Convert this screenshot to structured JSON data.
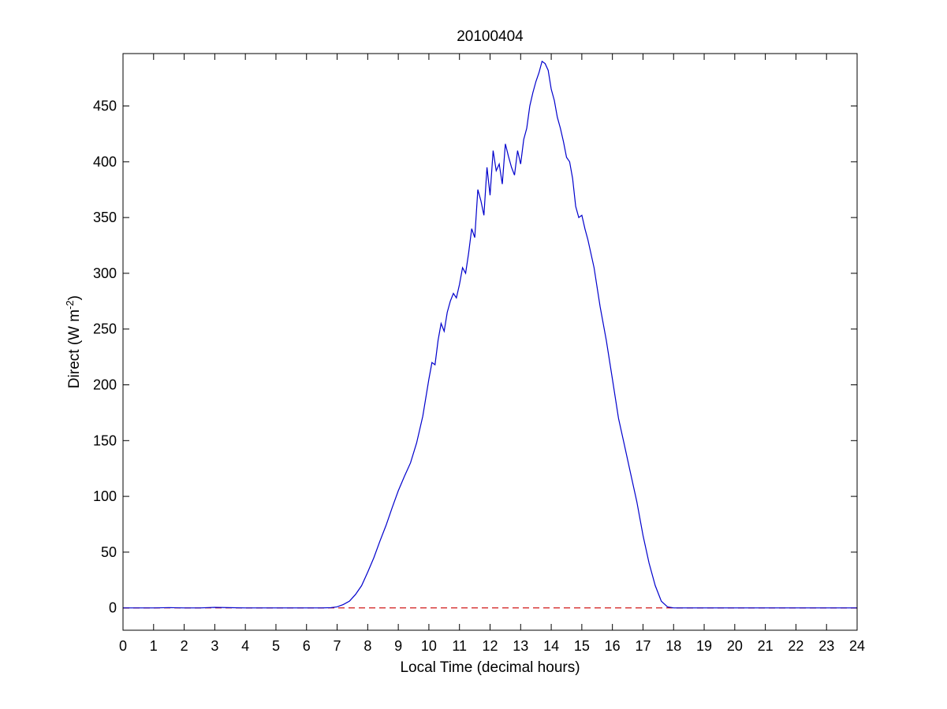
{
  "chart_data": {
    "type": "line",
    "title": "20100404",
    "xlabel": "Local Time (decimal hours)",
    "ylabel_main": "Direct (W m",
    "ylabel_sup": "-2",
    "ylabel_end": ")",
    "xlim": [
      0,
      24
    ],
    "ylim": [
      -20,
      497
    ],
    "xticks": [
      0,
      1,
      2,
      3,
      4,
      5,
      6,
      7,
      8,
      9,
      10,
      11,
      12,
      13,
      14,
      15,
      16,
      17,
      18,
      19,
      20,
      21,
      22,
      23,
      24
    ],
    "yticks": [
      0,
      50,
      100,
      150,
      200,
      250,
      300,
      350,
      400,
      450
    ],
    "grid": false,
    "colors": {
      "series": "#0000cc",
      "baseline": "#cc0000",
      "axes": "#000000"
    },
    "series": [
      {
        "x": [
          0,
          0.5,
          1,
          1.5,
          2,
          2.5,
          3,
          3.5,
          4,
          5,
          6,
          6.5,
          6.8,
          7,
          7.2,
          7.4,
          7.6,
          7.8,
          8,
          8.2,
          8.4,
          8.6,
          8.8,
          9,
          9.2,
          9.4,
          9.6,
          9.8,
          10,
          10.1,
          10.2,
          10.3,
          10.4,
          10.5,
          10.6,
          10.7,
          10.8,
          10.9,
          11,
          11.1,
          11.2,
          11.3,
          11.4,
          11.5,
          11.6,
          11.7,
          11.8,
          11.9,
          12,
          12.1,
          12.2,
          12.3,
          12.4,
          12.5,
          12.6,
          12.7,
          12.8,
          12.9,
          13,
          13.1,
          13.2,
          13.3,
          13.4,
          13.5,
          13.6,
          13.7,
          13.8,
          13.9,
          14,
          14.1,
          14.2,
          14.3,
          14.4,
          14.5,
          14.6,
          14.7,
          14.8,
          14.9,
          15,
          15.1,
          15.2,
          15.4,
          15.6,
          15.8,
          16,
          16.2,
          16.4,
          16.6,
          16.8,
          17,
          17.2,
          17.4,
          17.6,
          17.8,
          18,
          18.2,
          18.5,
          19,
          20,
          21,
          22,
          23,
          24
        ],
        "y": [
          0,
          0,
          0,
          0.3,
          0,
          0,
          0.5,
          0.2,
          0,
          0,
          0,
          0,
          0.2,
          1,
          3,
          6,
          12,
          20,
          32,
          45,
          60,
          74,
          90,
          105,
          118,
          130,
          148,
          172,
          205,
          220,
          218,
          240,
          255,
          248,
          265,
          275,
          282,
          278,
          290,
          305,
          300,
          318,
          340,
          332,
          375,
          365,
          352,
          395,
          370,
          410,
          392,
          398,
          380,
          416,
          405,
          395,
          388,
          410,
          398,
          420,
          430,
          450,
          462,
          472,
          480,
          490,
          488,
          482,
          465,
          455,
          440,
          430,
          418,
          404,
          400,
          385,
          360,
          350,
          352,
          340,
          330,
          305,
          270,
          240,
          205,
          170,
          145,
          120,
          95,
          65,
          40,
          20,
          6,
          1,
          0,
          0,
          0,
          0,
          0,
          0,
          0,
          0,
          0
        ]
      }
    ],
    "baseline": {
      "y": 0,
      "style": "dashed"
    }
  }
}
